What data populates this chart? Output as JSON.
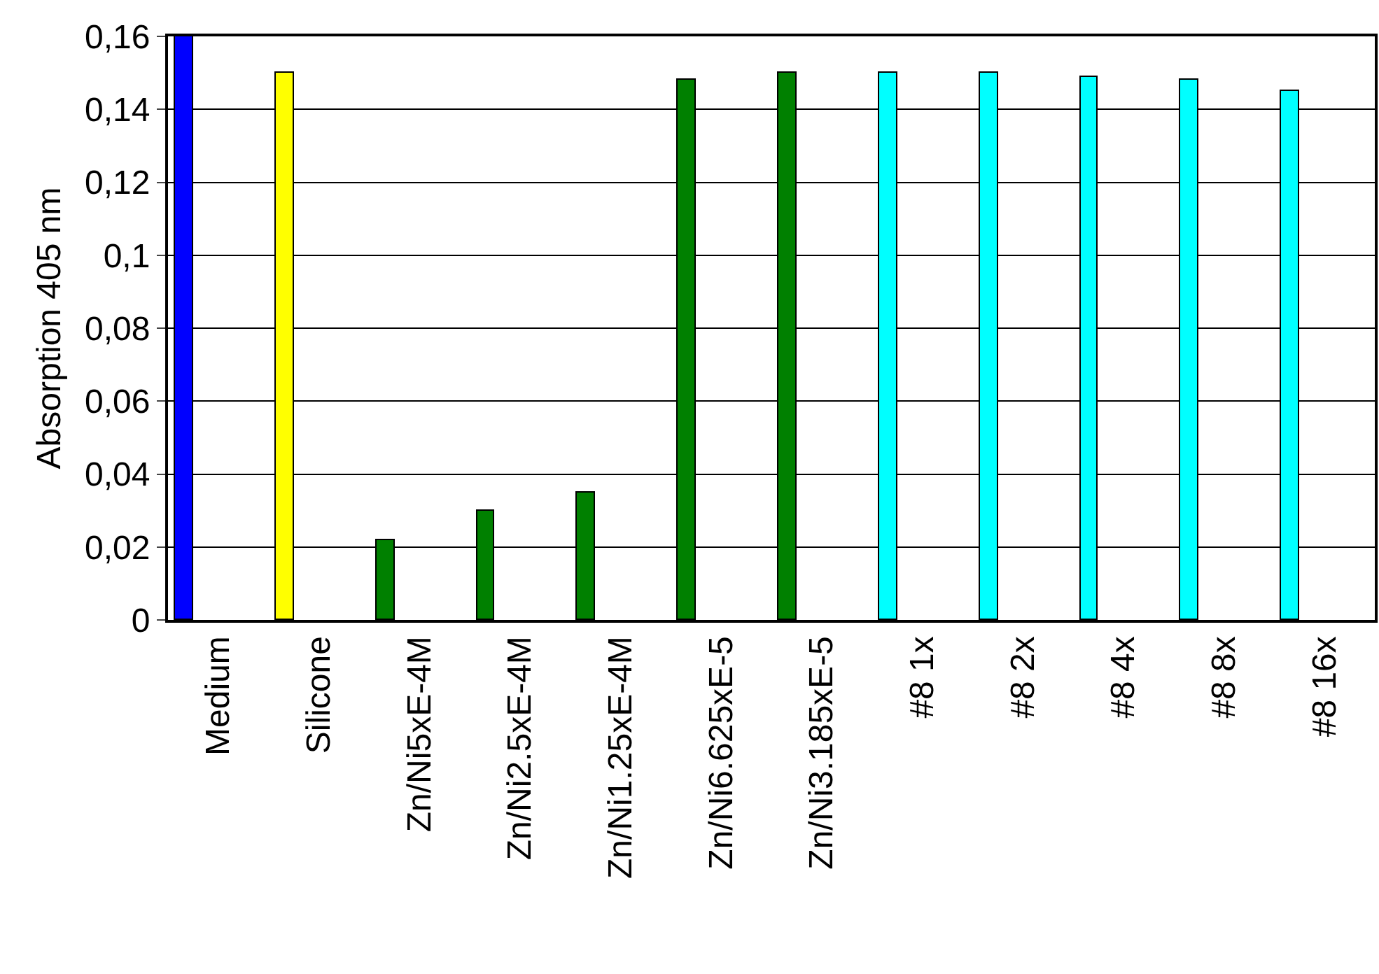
{
  "chart_data": {
    "type": "bar",
    "ylabel": "Absorption 405 nm",
    "categories": [
      "Medium",
      "Silicone",
      "Zn/Ni5xE-4M",
      "Zn/Ni2.5xE-4M",
      "Zn/Ni1.25xE-4M",
      "Zn/Ni6.625xE-5",
      "Zn/Ni3.185xE-5",
      "#8 1x",
      "#8 2x",
      "#8 4x",
      "#8 8x",
      "#8 16x"
    ],
    "values": [
      0.16,
      0.15,
      0.022,
      0.03,
      0.035,
      0.148,
      0.15,
      0.15,
      0.15,
      0.149,
      0.148,
      0.145
    ],
    "colors": [
      "#0000ff",
      "#ffff00",
      "#008000",
      "#008000",
      "#008000",
      "#008000",
      "#008000",
      "#00ffff",
      "#00ffff",
      "#00ffff",
      "#00ffff",
      "#00ffff"
    ],
    "ylim": [
      0,
      0.16
    ],
    "yticks": [
      0,
      {
        "value": 0.02,
        "label": "0,02"
      },
      {
        "value": 0.04,
        "label": "0,04"
      },
      {
        "value": 0.06,
        "label": "0,06"
      },
      {
        "value": 0.08,
        "label": "0,08"
      },
      {
        "value": 0.1,
        "label": "0,1"
      },
      {
        "value": 0.12,
        "label": "0,12"
      },
      {
        "value": 0.14,
        "label": "0,14"
      },
      {
        "value": 0.16,
        "label": "0,16"
      }
    ],
    "grid": "y"
  }
}
